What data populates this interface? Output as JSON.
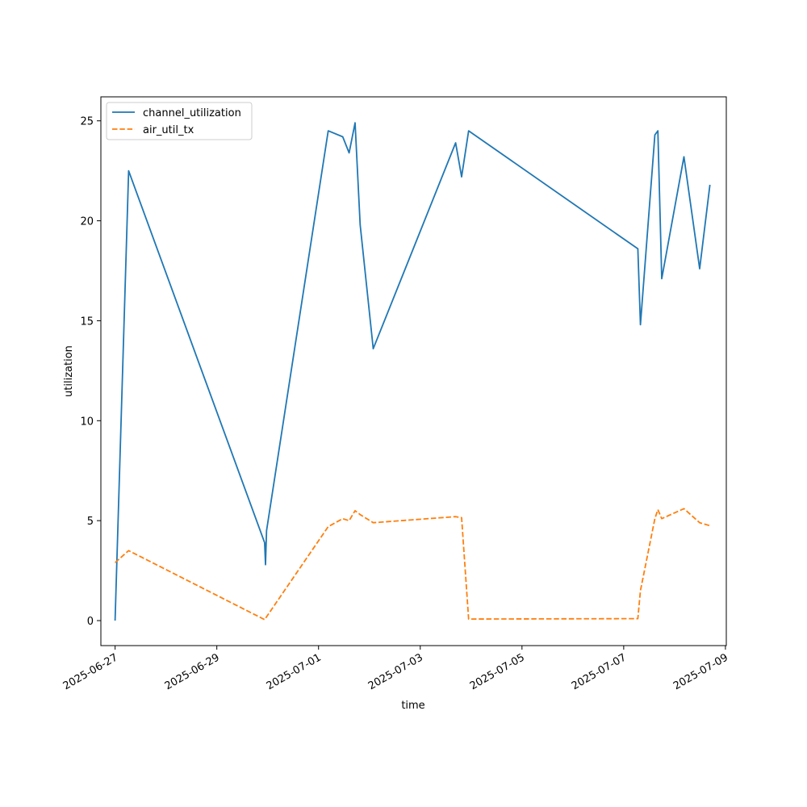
{
  "chart_data": {
    "type": "line",
    "xlabel": "time",
    "ylabel": "utilization",
    "x_is_date": true,
    "xlim": [
      "2025-06-26T17:17",
      "2025-07-09T00:25"
    ],
    "ylim": [
      -1.25,
      26.2
    ],
    "x_ticks": [
      "2025-06-27",
      "2025-06-29",
      "2025-07-01",
      "2025-07-03",
      "2025-07-05",
      "2025-07-07",
      "2025-07-09"
    ],
    "y_ticks": [
      0,
      5,
      10,
      15,
      20,
      25
    ],
    "grid": false,
    "legend": "upper-left",
    "series": [
      {
        "name": "channel_utilization",
        "color": "#1f77b4",
        "dash": "solid",
        "points": [
          [
            "2025-06-27T00:00",
            0.0
          ],
          [
            "2025-06-27T06:24",
            22.5
          ],
          [
            "2025-06-29T22:34",
            3.9
          ],
          [
            "2025-06-29T22:58",
            2.8
          ],
          [
            "2025-06-29T23:29",
            4.5
          ],
          [
            "2025-07-01T04:34",
            24.5
          ],
          [
            "2025-07-01T11:24",
            24.2
          ],
          [
            "2025-07-01T14:25",
            23.4
          ],
          [
            "2025-07-01T17:14",
            24.9
          ],
          [
            "2025-07-01T19:38",
            19.8
          ],
          [
            "2025-07-02T01:48",
            13.6
          ],
          [
            "2025-07-03T16:41",
            23.9
          ],
          [
            "2025-07-03T19:31",
            22.2
          ],
          [
            "2025-07-03T22:49",
            24.5
          ],
          [
            "2025-07-07T06:41",
            18.6
          ],
          [
            "2025-07-07T07:55",
            14.8
          ],
          [
            "2025-07-07T14:43",
            24.3
          ],
          [
            "2025-07-07T16:07",
            24.5
          ],
          [
            "2025-07-07T17:56",
            17.1
          ],
          [
            "2025-07-08T04:25",
            23.2
          ],
          [
            "2025-07-08T11:52",
            17.6
          ],
          [
            "2025-07-08T16:41",
            21.8
          ]
        ]
      },
      {
        "name": "air_util_tx",
        "color": "#ff7f0e",
        "dash": "dashed",
        "points": [
          [
            "2025-06-27T00:00",
            2.9
          ],
          [
            "2025-06-27T06:24",
            3.5
          ],
          [
            "2025-06-29T22:34",
            0.05
          ],
          [
            "2025-07-01T04:34",
            4.7
          ],
          [
            "2025-07-01T11:24",
            5.1
          ],
          [
            "2025-07-01T14:25",
            5.0
          ],
          [
            "2025-07-01T17:14",
            5.5
          ],
          [
            "2025-07-01T19:38",
            5.3
          ],
          [
            "2025-07-02T01:48",
            4.9
          ],
          [
            "2025-07-03T16:41",
            5.2
          ],
          [
            "2025-07-03T19:31",
            5.15
          ],
          [
            "2025-07-03T22:49",
            0.08
          ],
          [
            "2025-07-07T06:41",
            0.1
          ],
          [
            "2025-07-07T07:55",
            1.5
          ],
          [
            "2025-07-07T14:43",
            5.1
          ],
          [
            "2025-07-07T16:07",
            5.55
          ],
          [
            "2025-07-07T17:56",
            5.1
          ],
          [
            "2025-07-08T04:25",
            5.6
          ],
          [
            "2025-07-08T11:52",
            4.9
          ],
          [
            "2025-07-08T16:41",
            4.75
          ]
        ]
      }
    ]
  }
}
